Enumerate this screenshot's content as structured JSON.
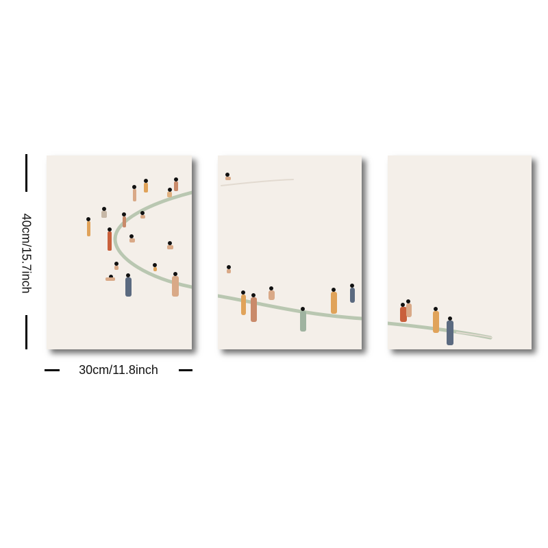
{
  "dimensions": {
    "width_label": "30cm/11.8inch",
    "height_label": "40cm/15.7inch"
  },
  "colors": {
    "canvas": "#f4efe9",
    "path": "#b9c7b1",
    "skin": "#d9a987",
    "hair": "#111111"
  },
  "panels": [
    {
      "name": "left-panel",
      "content": "swimmers along curved path"
    },
    {
      "name": "middle-panel",
      "content": "swimmers along path"
    },
    {
      "name": "right-panel",
      "content": "swimmers along path"
    }
  ]
}
